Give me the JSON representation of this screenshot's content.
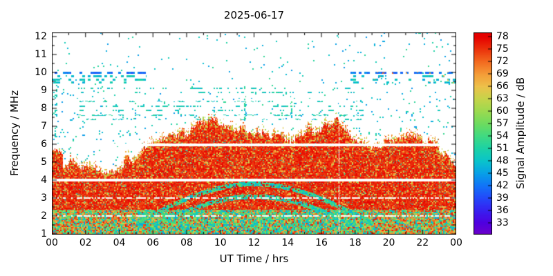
{
  "chart_data": {
    "type": "heatmap",
    "title": "2025-06-17",
    "xlabel": "UT Time / hrs",
    "ylabel": "Frequency / MHz",
    "colorbar_label": "Signal Amplitude / dB",
    "x_hours_range": [
      0,
      24
    ],
    "x_ticks": [
      "00",
      "02",
      "04",
      "06",
      "08",
      "10",
      "12",
      "14",
      "16",
      "18",
      "20",
      "22",
      "00"
    ],
    "y_ticks": [
      1,
      2,
      3,
      4,
      5,
      6,
      7,
      8,
      9,
      10,
      11,
      12
    ],
    "freq_range_mhz": [
      1,
      12
    ],
    "colorbar_ticks": [
      78,
      75,
      72,
      69,
      66,
      63,
      60,
      57,
      54,
      51,
      48,
      45,
      42,
      39,
      36,
      33
    ],
    "amplitude_range_db": [
      33,
      78
    ],
    "grid": false,
    "palette_stops": [
      [
        30,
        "#7000c8"
      ],
      [
        33,
        "#5000e0"
      ],
      [
        36,
        "#3820f0"
      ],
      [
        39,
        "#2448fa"
      ],
      [
        42,
        "#1274f8"
      ],
      [
        45,
        "#08a0e8"
      ],
      [
        48,
        "#0ac4cc"
      ],
      [
        51,
        "#1cd2a6"
      ],
      [
        54,
        "#40da82"
      ],
      [
        57,
        "#6edc60"
      ],
      [
        60,
        "#9cda50"
      ],
      [
        63,
        "#c6d44a"
      ],
      [
        66,
        "#eec24a"
      ],
      [
        69,
        "#f59c38"
      ],
      [
        72,
        "#f36a20"
      ],
      [
        75,
        "#ec320c"
      ],
      [
        78,
        "#e60000"
      ],
      [
        79,
        "#e40000"
      ]
    ],
    "envelope_fof_mhz": {
      "hours": [
        0,
        1,
        2,
        3,
        4,
        5,
        6,
        7,
        8,
        9,
        10,
        11,
        12,
        13,
        14,
        15,
        16,
        17,
        18,
        19,
        20,
        21,
        22,
        23,
        24
      ],
      "max_freq_mhz": [
        5.3,
        4.9,
        4.7,
        4.6,
        4.8,
        5.4,
        6.3,
        6.5,
        6.6,
        7.1,
        7.2,
        6.9,
        6.7,
        6.4,
        6.3,
        6.6,
        7.1,
        7.3,
        6.2,
        5.9,
        6.2,
        6.5,
        6.2,
        5.9,
        4.9
      ]
    },
    "white_gap_lines_mhz": [
      4.0,
      6.0
    ],
    "partial_white_lines_mhz": [
      2.0,
      3.0
    ],
    "sporadic_e_rows": [
      {
        "freq_mhz": 10.0,
        "density": 0.5,
        "kind": "blue"
      },
      {
        "freq_mhz": 9.8,
        "density": 0.32,
        "kind": "cyan"
      },
      {
        "freq_mhz": 9.62,
        "density": 0.28,
        "kind": "cyan"
      },
      {
        "freq_mhz": 9.45,
        "density": 0.22,
        "kind": "cyan"
      }
    ],
    "sporadic_e_visible_hours": {
      "before": 5.6,
      "after": 17.7
    },
    "faint_speckle_rows_mhz": [
      7.4,
      7.65,
      7.9,
      8.15,
      8.4,
      8.9,
      9.15
    ],
    "arcs": [
      {
        "t0": 5,
        "t1": 19,
        "base_mhz": 1.6,
        "amp_mhz": 2.2
      },
      {
        "t0": 6,
        "t1": 18,
        "base_mhz": 1.5,
        "amp_mhz": 1.6
      }
    ],
    "noise_seed": 7
  }
}
